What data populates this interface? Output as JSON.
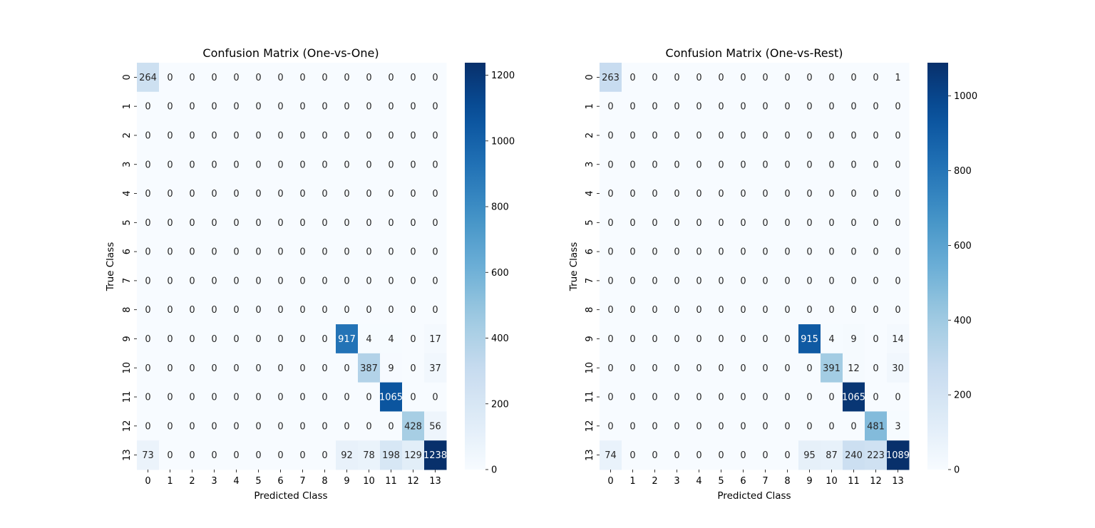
{
  "chart_data": [
    {
      "type": "heatmap",
      "title": "Confusion Matrix (One-vs-One)",
      "xlabel": "Predicted Class",
      "ylabel": "True Class",
      "x_categories": [
        "0",
        "1",
        "2",
        "3",
        "4",
        "5",
        "6",
        "7",
        "8",
        "9",
        "10",
        "11",
        "12",
        "13"
      ],
      "y_categories": [
        "0",
        "1",
        "2",
        "3",
        "4",
        "5",
        "6",
        "7",
        "8",
        "9",
        "10",
        "11",
        "12",
        "13"
      ],
      "colormap": "Blues",
      "vmin": 0,
      "vmax": 1238,
      "colorbar_ticks": [
        0,
        200,
        400,
        600,
        800,
        1000,
        1200
      ],
      "values": [
        [
          264,
          0,
          0,
          0,
          0,
          0,
          0,
          0,
          0,
          0,
          0,
          0,
          0,
          0
        ],
        [
          0,
          0,
          0,
          0,
          0,
          0,
          0,
          0,
          0,
          0,
          0,
          0,
          0,
          0
        ],
        [
          0,
          0,
          0,
          0,
          0,
          0,
          0,
          0,
          0,
          0,
          0,
          0,
          0,
          0
        ],
        [
          0,
          0,
          0,
          0,
          0,
          0,
          0,
          0,
          0,
          0,
          0,
          0,
          0,
          0
        ],
        [
          0,
          0,
          0,
          0,
          0,
          0,
          0,
          0,
          0,
          0,
          0,
          0,
          0,
          0
        ],
        [
          0,
          0,
          0,
          0,
          0,
          0,
          0,
          0,
          0,
          0,
          0,
          0,
          0,
          0
        ],
        [
          0,
          0,
          0,
          0,
          0,
          0,
          0,
          0,
          0,
          0,
          0,
          0,
          0,
          0
        ],
        [
          0,
          0,
          0,
          0,
          0,
          0,
          0,
          0,
          0,
          0,
          0,
          0,
          0,
          0
        ],
        [
          0,
          0,
          0,
          0,
          0,
          0,
          0,
          0,
          0,
          0,
          0,
          0,
          0,
          0
        ],
        [
          0,
          0,
          0,
          0,
          0,
          0,
          0,
          0,
          0,
          917,
          4,
          4,
          0,
          17
        ],
        [
          0,
          0,
          0,
          0,
          0,
          0,
          0,
          0,
          0,
          0,
          387,
          9,
          0,
          37
        ],
        [
          0,
          0,
          0,
          0,
          0,
          0,
          0,
          0,
          0,
          0,
          0,
          1065,
          0,
          0
        ],
        [
          0,
          0,
          0,
          0,
          0,
          0,
          0,
          0,
          0,
          0,
          0,
          0,
          428,
          56
        ],
        [
          73,
          0,
          0,
          0,
          0,
          0,
          0,
          0,
          0,
          92,
          78,
          198,
          129,
          1238
        ]
      ]
    },
    {
      "type": "heatmap",
      "title": "Confusion Matrix (One-vs-Rest)",
      "xlabel": "Predicted Class",
      "ylabel": "True Class",
      "x_categories": [
        "0",
        "1",
        "2",
        "3",
        "4",
        "5",
        "6",
        "7",
        "8",
        "9",
        "10",
        "11",
        "12",
        "13"
      ],
      "y_categories": [
        "0",
        "1",
        "2",
        "3",
        "4",
        "5",
        "6",
        "7",
        "8",
        "9",
        "10",
        "11",
        "12",
        "13"
      ],
      "colormap": "Blues",
      "vmin": 0,
      "vmax": 1089,
      "colorbar_ticks": [
        0,
        200,
        400,
        600,
        800,
        1000
      ],
      "values": [
        [
          263,
          0,
          0,
          0,
          0,
          0,
          0,
          0,
          0,
          0,
          0,
          0,
          0,
          1
        ],
        [
          0,
          0,
          0,
          0,
          0,
          0,
          0,
          0,
          0,
          0,
          0,
          0,
          0,
          0
        ],
        [
          0,
          0,
          0,
          0,
          0,
          0,
          0,
          0,
          0,
          0,
          0,
          0,
          0,
          0
        ],
        [
          0,
          0,
          0,
          0,
          0,
          0,
          0,
          0,
          0,
          0,
          0,
          0,
          0,
          0
        ],
        [
          0,
          0,
          0,
          0,
          0,
          0,
          0,
          0,
          0,
          0,
          0,
          0,
          0,
          0
        ],
        [
          0,
          0,
          0,
          0,
          0,
          0,
          0,
          0,
          0,
          0,
          0,
          0,
          0,
          0
        ],
        [
          0,
          0,
          0,
          0,
          0,
          0,
          0,
          0,
          0,
          0,
          0,
          0,
          0,
          0
        ],
        [
          0,
          0,
          0,
          0,
          0,
          0,
          0,
          0,
          0,
          0,
          0,
          0,
          0,
          0
        ],
        [
          0,
          0,
          0,
          0,
          0,
          0,
          0,
          0,
          0,
          0,
          0,
          0,
          0,
          0
        ],
        [
          0,
          0,
          0,
          0,
          0,
          0,
          0,
          0,
          0,
          915,
          4,
          9,
          0,
          14
        ],
        [
          0,
          0,
          0,
          0,
          0,
          0,
          0,
          0,
          0,
          0,
          391,
          12,
          0,
          30
        ],
        [
          0,
          0,
          0,
          0,
          0,
          0,
          0,
          0,
          0,
          0,
          0,
          1065,
          0,
          0
        ],
        [
          0,
          0,
          0,
          0,
          0,
          0,
          0,
          0,
          0,
          0,
          0,
          0,
          481,
          3
        ],
        [
          74,
          0,
          0,
          0,
          0,
          0,
          0,
          0,
          0,
          95,
          87,
          240,
          223,
          1089
        ]
      ]
    }
  ]
}
